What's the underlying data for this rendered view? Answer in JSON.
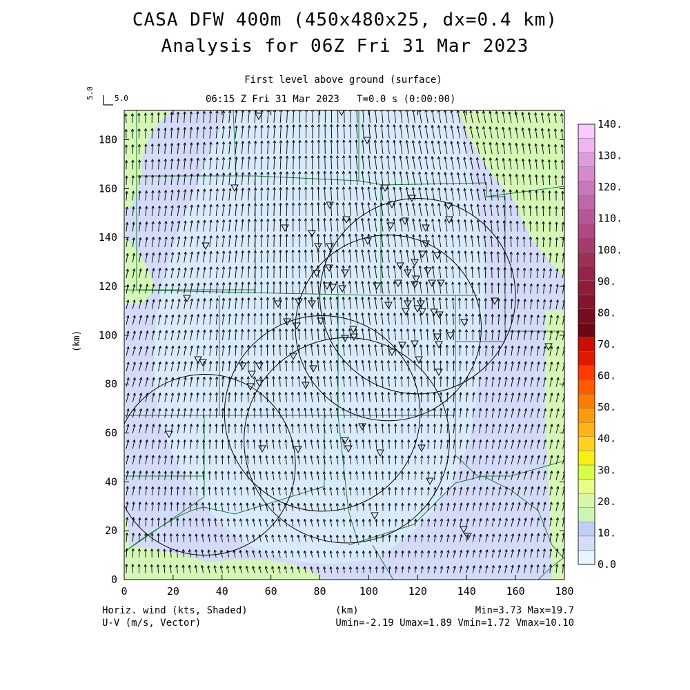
{
  "header": {
    "title_line1": "CASA DFW 400m (450x480x25, dx=0.4 km)",
    "title_line2": "Analysis for 06Z Fri 31 Mar 2023",
    "level": "First level above ground (surface)",
    "valid_time": "06:15 Z Fri 31 Mar 2023",
    "model_time": "T=0.0 s (0:00:00)",
    "ref_vector_v": "5.0",
    "ref_vector_h": "5.0"
  },
  "footer": {
    "field1": "Horiz. wind (kts, Shaded)",
    "field2": "U-V (m/s, Vector)",
    "x_unit": "(km)",
    "minmax": "Min=3.73 Max=19.7",
    "uvminmax": "Umin=-2.19 Umax=1.89 Vmin=1.72 Vmax=10.10"
  },
  "axes": {
    "ylabel": "(km)",
    "xlim": [
      0,
      180
    ],
    "ylim": [
      0,
      192
    ],
    "x_ticks": [
      "0",
      "20",
      "40",
      "60",
      "80",
      "100",
      "120",
      "140",
      "160",
      "180"
    ],
    "y_ticks": [
      "0",
      "20",
      "40",
      "60",
      "80",
      "100",
      "120",
      "140",
      "160",
      "180"
    ]
  },
  "colorbar": {
    "labels": [
      "0.0",
      "10.",
      "20.",
      "30.",
      "40.",
      "50.",
      "60.",
      "70.",
      "80.",
      "90.",
      "100.",
      "110.",
      "120.",
      "130.",
      "140."
    ],
    "colors": [
      "#e4f6fb",
      "#d4dcf8",
      "#c2cdf4",
      "#c9f6b4",
      "#d6f7a9",
      "#e6ff8a",
      "#d8ff48",
      "#f6f010",
      "#ffd21e",
      "#ffb414",
      "#ff9a0a",
      "#ff7a00",
      "#ff5a00",
      "#ff3a00",
      "#e01800",
      "#c81000",
      "#6c0814",
      "#780c20",
      "#86142c",
      "#901c38",
      "#962448",
      "#9c3058",
      "#a63c6c",
      "#ae4a80",
      "#b45896",
      "#be68a8",
      "#c878bc",
      "#d48ace",
      "#de9ce0",
      "#f0b4f0",
      "#fec8fe"
    ]
  },
  "map": {
    "colors": {
      "light_blue": "#d9ebfb",
      "lavender": "#d3dbf8",
      "light_green": "#d4f7b6",
      "boundary": "#1e7a3e",
      "vector": "#000000",
      "radar_ring": "#000000"
    }
  },
  "chart_data": {
    "type": "map",
    "field": "Horizontal wind speed (kts) shaded with U-V wind vectors (m/s)",
    "min_speed": 3.73,
    "max_speed": 19.7,
    "u_range": [
      -2.19,
      1.89
    ],
    "v_range": [
      1.72,
      10.1
    ],
    "radar_rings": [
      {
        "center_km": [
          33,
          47
        ],
        "radius_km": 37
      },
      {
        "center_km": [
          81,
          68
        ],
        "radius_km": 40
      },
      {
        "center_km": [
          91,
          57
        ],
        "radius_km": 42
      },
      {
        "center_km": [
          108,
          103
        ],
        "radius_km": 38
      },
      {
        "center_km": [
          120,
          116
        ],
        "radius_km": 40
      }
    ]
  }
}
